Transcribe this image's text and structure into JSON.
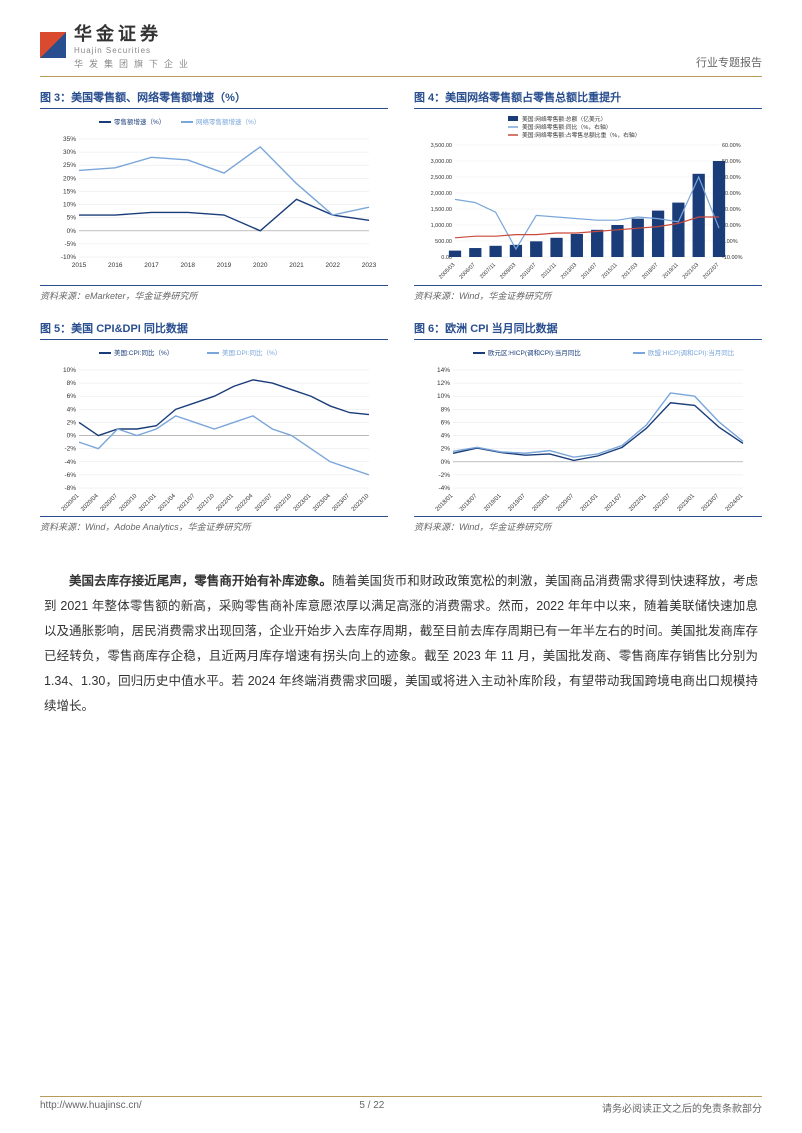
{
  "header": {
    "logo_cn": "华金证券",
    "logo_en": "Huajin Securities",
    "logo_sub": "华发集团旗下企业",
    "right": "行业专题报告"
  },
  "charts": {
    "c3": {
      "title": "图 3：美国零售额、网络零售额增速（%）",
      "source": "资料来源：eMarketer，华金证券研究所",
      "type": "line",
      "legend": [
        "零售额增速（%）",
        "网络零售额增速（%）"
      ],
      "legend_markers": [
        "diamond",
        "square"
      ],
      "x": [
        "2015",
        "2016",
        "2017",
        "2018",
        "2019",
        "2020",
        "2021",
        "2022",
        "2023"
      ],
      "series": [
        {
          "name": "retail",
          "color": "#1a3d7a",
          "values": [
            6,
            6,
            7,
            7,
            6,
            0,
            12,
            6,
            4
          ]
        },
        {
          "name": "online",
          "color": "#7aa6d9",
          "values": [
            23,
            24,
            28,
            27,
            22,
            32,
            18,
            6,
            9
          ]
        }
      ],
      "ylim": [
        -10,
        35
      ],
      "ytick_step": 5,
      "grid_color": "#e6e6e6"
    },
    "c4": {
      "title": "图 4：美国网络零售额占零售总额比重提升",
      "source": "资料来源：Wind，华金证券研究所",
      "type": "bar+line",
      "legend": [
        "美国:网络零售额:总额（亿美元）",
        "美国:网络零售额:同比（%，右轴）",
        "美国:网络零售额:占零售总额比重（%，右轴）"
      ],
      "legend_colors": [
        "#1a3d7a",
        "#7aa6d9",
        "#c94a3a"
      ],
      "x": [
        "2005/03",
        "2006/07",
        "2007/11",
        "2009/03",
        "2010/07",
        "2011/11",
        "2013/03",
        "2014/07",
        "2015/11",
        "2017/03",
        "2018/07",
        "2019/11",
        "2021/03",
        "2022/07"
      ],
      "bars": {
        "color": "#1a3d7a",
        "values": [
          200,
          280,
          350,
          380,
          490,
          600,
          720,
          850,
          1000,
          1200,
          1450,
          1700,
          2600,
          3000
        ]
      },
      "line1": {
        "color": "#7aa6d9",
        "values": [
          26,
          24,
          18,
          -5,
          16,
          15,
          14,
          13,
          13,
          15,
          14,
          12,
          40,
          8
        ]
      },
      "line2": {
        "color": "#c94a3a",
        "values": [
          2,
          3,
          3,
          4,
          4,
          5,
          5,
          6,
          7,
          8,
          9,
          11,
          15,
          15
        ]
      },
      "y1lim": [
        0,
        3500
      ],
      "y1tick_step": 500,
      "y2lim": [
        -10,
        60
      ],
      "y2tick_step": 10,
      "grid_color": "#e6e6e6"
    },
    "c5": {
      "title": "图 5：美国 CPI&DPI 同比数据",
      "source": "资料来源：Wind，Adobe Analytics，华金证券研究所",
      "type": "line",
      "legend": [
        "美国:CPI:同比（%）",
        "美国:DPI:同比（%）"
      ],
      "legend_colors": [
        "#1a3d7a",
        "#7aa6d9"
      ],
      "x": [
        "2020/01",
        "2020/04",
        "2020/07",
        "2020/10",
        "2021/01",
        "2021/04",
        "2021/07",
        "2021/10",
        "2022/01",
        "2022/04",
        "2022/07",
        "2022/10",
        "2023/01",
        "2023/04",
        "2023/07",
        "2023/10"
      ],
      "series": [
        {
          "color": "#1a3d7a",
          "values": [
            2,
            0,
            1,
            1,
            1.5,
            4,
            5,
            6,
            7.5,
            8.5,
            8,
            7,
            6,
            4.5,
            3.5,
            3.2
          ]
        },
        {
          "color": "#7aa6d9",
          "values": [
            -1,
            -2,
            1,
            0,
            1,
            3,
            2,
            1,
            2,
            3,
            1,
            0,
            -2,
            -4,
            -5,
            -6
          ]
        }
      ],
      "ylim": [
        -8,
        10
      ],
      "ytick_step": 2,
      "grid_color": "#e6e6e6"
    },
    "c6": {
      "title": "图 6：欧洲 CPI 当月同比数据",
      "source": "资料来源：Wind，华金证券研究所",
      "type": "line",
      "legend": [
        "欧元区:HICP(调和CPI):当月同比",
        "欧盟:HICP(调和CPI):当月同比"
      ],
      "legend_colors": [
        "#1a3d7a",
        "#7aa6d9"
      ],
      "x": [
        "2018/01",
        "2018/07",
        "2019/01",
        "2019/07",
        "2020/01",
        "2020/07",
        "2021/01",
        "2021/07",
        "2022/01",
        "2022/07",
        "2023/01",
        "2023/07",
        "2024/01"
      ],
      "series": [
        {
          "color": "#1a3d7a",
          "values": [
            1.3,
            2.1,
            1.4,
            1.0,
            1.2,
            0.2,
            0.9,
            2.2,
            5.1,
            9.0,
            8.6,
            5.3,
            2.8
          ]
        },
        {
          "color": "#7aa6d9",
          "values": [
            1.6,
            2.2,
            1.5,
            1.3,
            1.7,
            0.7,
            1.2,
            2.5,
            5.6,
            10.5,
            10.0,
            6.1,
            3.1
          ]
        }
      ],
      "ylim": [
        -4,
        14
      ],
      "ytick_step": 2,
      "grid_color": "#e6e6e6"
    }
  },
  "body": {
    "bold_lead": "美国去库存接近尾声，零售商开始有补库迹象。",
    "para": "随着美国货币和财政政策宽松的刺激，美国商品消费需求得到快速释放，考虑到 2021 年整体零售额的新高，采购零售商补库意愿浓厚以满足高涨的消费需求。然而，2022 年年中以来，随着美联储快速加息以及通胀影响，居民消费需求出现回落，企业开始步入去库存周期，截至目前去库存周期已有一年半左右的时间。美国批发商库存已经转负，零售商库存企稳，且近两月库存增速有拐头向上的迹象。截至 2023 年 11 月，美国批发商、零售商库存销售比分别为 1.34、1.30，回归历史中值水平。若 2024 年终端消费需求回暖，美国或将进入主动补库阶段，有望带动我国跨境电商出口规模持续增长。"
  },
  "footer": {
    "left": "http://www.huajinsc.cn/",
    "center": "5 / 22",
    "right": "请务必阅读正文之后的免责条款部分"
  },
  "colors": {
    "primary": "#1a3d7a",
    "secondary": "#7aa6d9",
    "accent": "#c94a3a",
    "gold": "#b89a5a"
  }
}
